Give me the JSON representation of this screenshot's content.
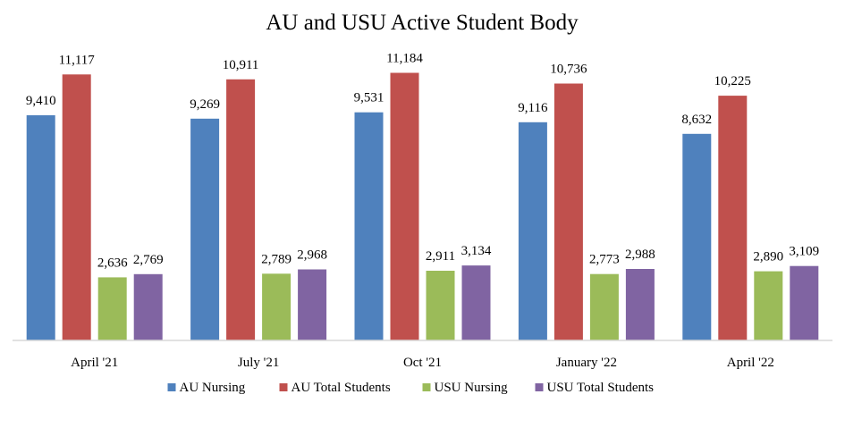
{
  "chart_data": {
    "type": "bar",
    "title": "AU and USU Active Student Body",
    "categories": [
      "April '21",
      "July '21",
      "Oct '21",
      "January '22",
      "April '22"
    ],
    "series": [
      {
        "name": "AU Nursing",
        "color": "#4F81BD",
        "values": [
          9410,
          9269,
          9531,
          9116,
          8632
        ],
        "labels": [
          "9,410",
          "9,269",
          "9,531",
          "9,116",
          "8,632"
        ]
      },
      {
        "name": "AU Total Students",
        "color": "#C0504D",
        "values": [
          11117,
          10911,
          11184,
          10736,
          10225
        ],
        "labels": [
          "11,117",
          "10,911",
          "11,184",
          "10,736",
          "10,225"
        ]
      },
      {
        "name": "USU Nursing",
        "color": "#9BBB59",
        "values": [
          2636,
          2789,
          2911,
          2773,
          2890
        ],
        "labels": [
          "2,636",
          "2,789",
          "2,911",
          "2,773",
          "2,890"
        ]
      },
      {
        "name": "USU Total Students",
        "color": "#8064A2",
        "values": [
          2769,
          2968,
          3134,
          2988,
          3109
        ],
        "labels": [
          "2,769",
          "2,968",
          "3,134",
          "2,988",
          "3,109"
        ]
      }
    ],
    "ylim": [
      0,
      11500
    ],
    "legend": "bottom",
    "grid": false,
    "data_labels": true
  }
}
